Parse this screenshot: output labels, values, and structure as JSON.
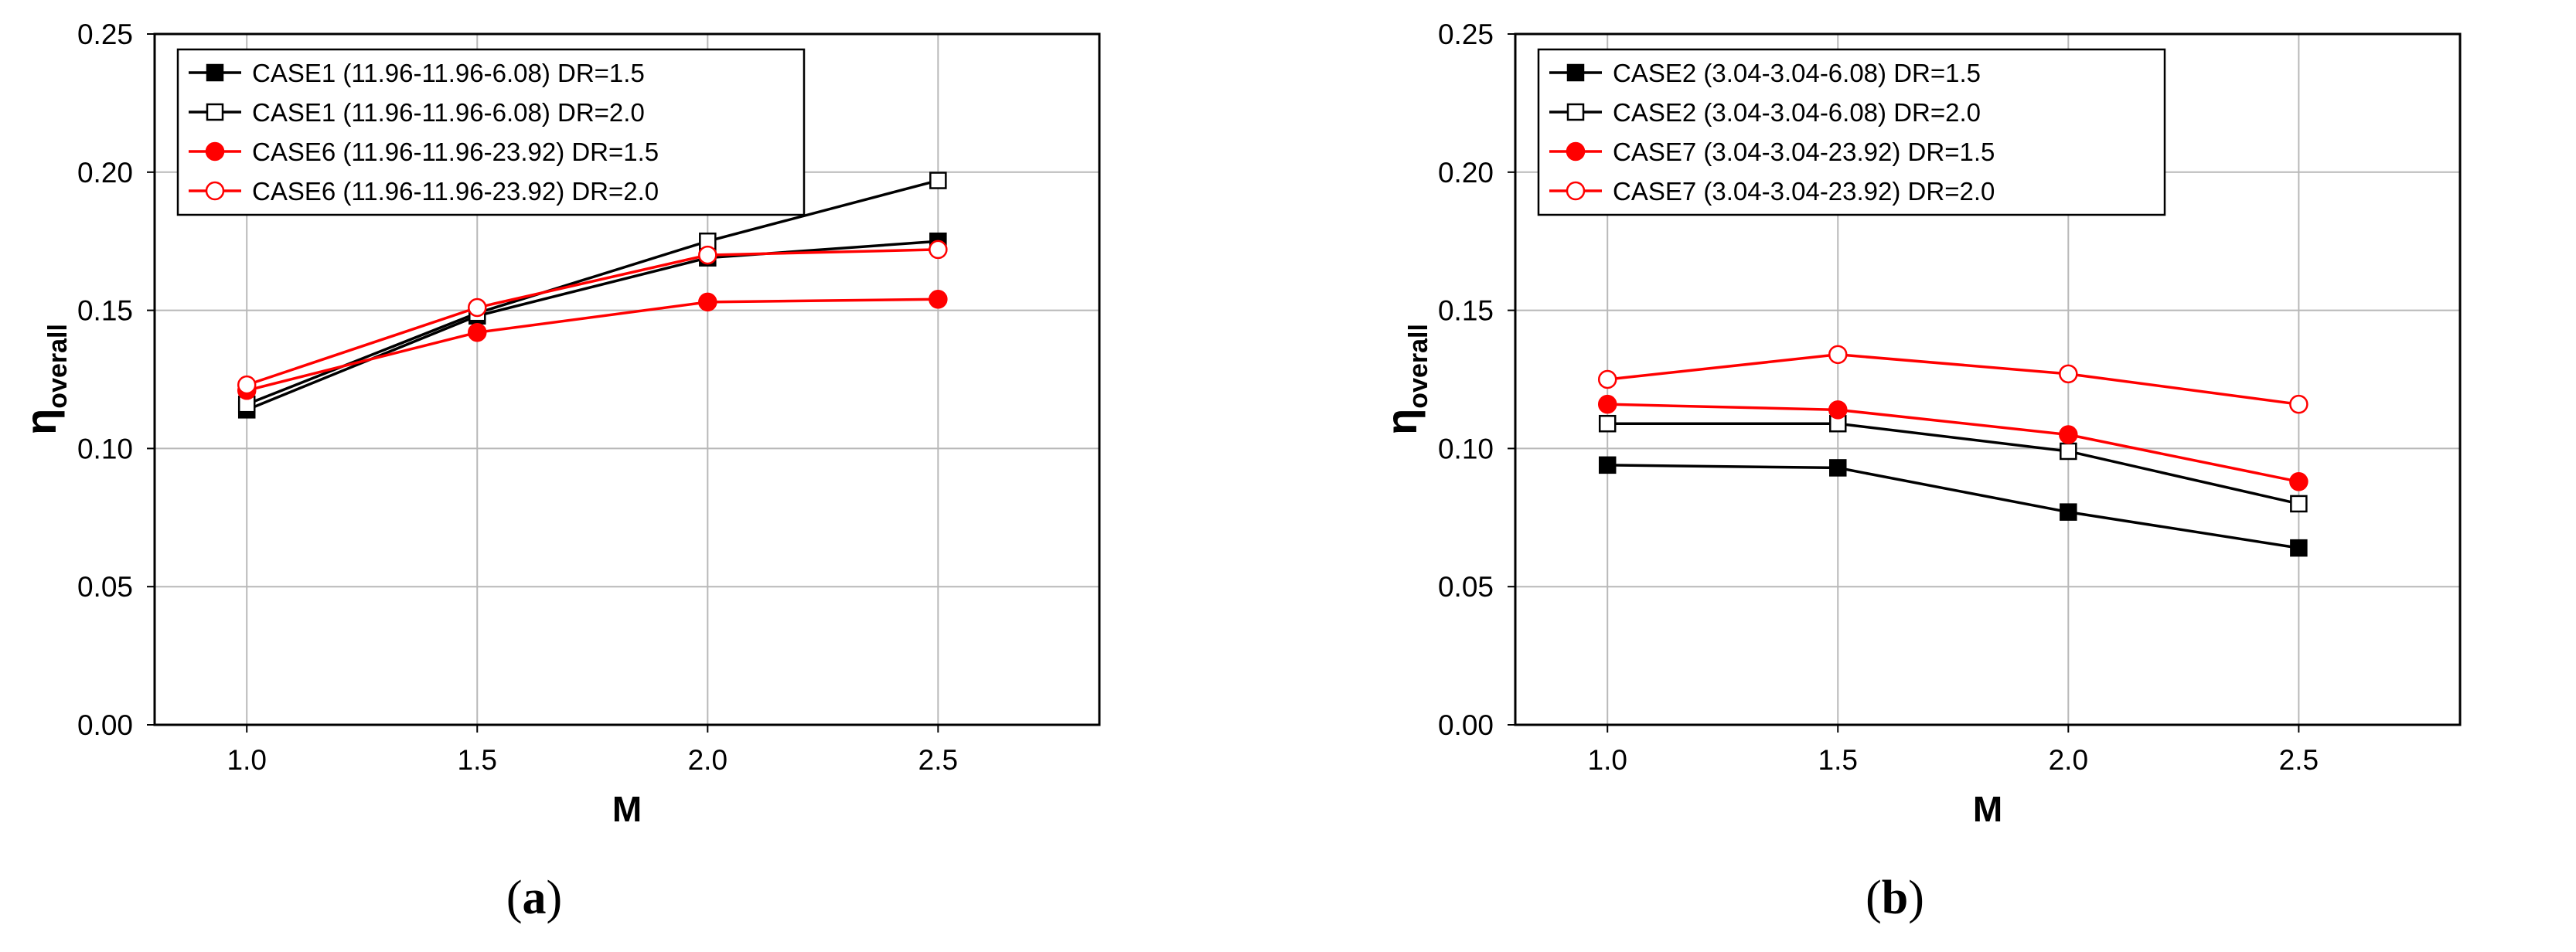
{
  "chart_data": [
    {
      "type": "line",
      "panel_label": "a",
      "xlabel": "M",
      "ylabel_main": "η",
      "ylabel_sub": "overall",
      "x": [
        1.0,
        1.5,
        2.0,
        2.5
      ],
      "xtick_labels": [
        "1.0",
        "1.5",
        "2.0",
        "2.5"
      ],
      "xlim": [
        0.8,
        2.85
      ],
      "ylim": [
        0.0,
        0.25
      ],
      "yticks": [
        0.0,
        0.05,
        0.1,
        0.15,
        0.2,
        0.25
      ],
      "ytick_labels": [
        "0.00",
        "0.05",
        "0.10",
        "0.15",
        "0.20",
        "0.25"
      ],
      "grid": true,
      "legend_position": "top-left",
      "series": [
        {
          "name": "CASE1 (11.96-11.96-6.08) DR=1.5",
          "color": "#000000",
          "marker": "square",
          "filled": true,
          "values": [
            0.114,
            0.148,
            0.169,
            0.175
          ]
        },
        {
          "name": "CASE1 (11.96-11.96-6.08) DR=2.0",
          "color": "#000000",
          "marker": "square",
          "filled": false,
          "values": [
            0.116,
            0.149,
            0.175,
            0.197
          ]
        },
        {
          "name": "CASE6 (11.96-11.96-23.92) DR=1.5",
          "color": "#ff0000",
          "marker": "circle",
          "filled": true,
          "values": [
            0.121,
            0.142,
            0.153,
            0.154
          ]
        },
        {
          "name": "CASE6 (11.96-11.96-23.92) DR=2.0",
          "color": "#ff0000",
          "marker": "circle",
          "filled": false,
          "values": [
            0.123,
            0.151,
            0.17,
            0.172
          ]
        }
      ]
    },
    {
      "type": "line",
      "panel_label": "b",
      "xlabel": "M",
      "ylabel_main": "η",
      "ylabel_sub": "overall",
      "x": [
        1.0,
        1.5,
        2.0,
        2.5
      ],
      "xtick_labels": [
        "1.0",
        "1.5",
        "2.0",
        "2.5"
      ],
      "xlim": [
        0.8,
        2.85
      ],
      "ylim": [
        0.0,
        0.25
      ],
      "yticks": [
        0.0,
        0.05,
        0.1,
        0.15,
        0.2,
        0.25
      ],
      "ytick_labels": [
        "0.00",
        "0.05",
        "0.10",
        "0.15",
        "0.20",
        "0.25"
      ],
      "grid": true,
      "legend_position": "top-left",
      "series": [
        {
          "name": "CASE2 (3.04-3.04-6.08) DR=1.5",
          "color": "#000000",
          "marker": "square",
          "filled": true,
          "values": [
            0.094,
            0.093,
            0.077,
            0.064
          ]
        },
        {
          "name": "CASE2 (3.04-3.04-6.08) DR=2.0",
          "color": "#000000",
          "marker": "square",
          "filled": false,
          "values": [
            0.109,
            0.109,
            0.099,
            0.08
          ]
        },
        {
          "name": "CASE7 (3.04-3.04-23.92) DR=1.5",
          "color": "#ff0000",
          "marker": "circle",
          "filled": true,
          "values": [
            0.116,
            0.114,
            0.105,
            0.088
          ]
        },
        {
          "name": "CASE7 (3.04-3.04-23.92) DR=2.0",
          "color": "#ff0000",
          "marker": "circle",
          "filled": false,
          "values": [
            0.125,
            0.134,
            0.127,
            0.116
          ]
        }
      ]
    }
  ]
}
